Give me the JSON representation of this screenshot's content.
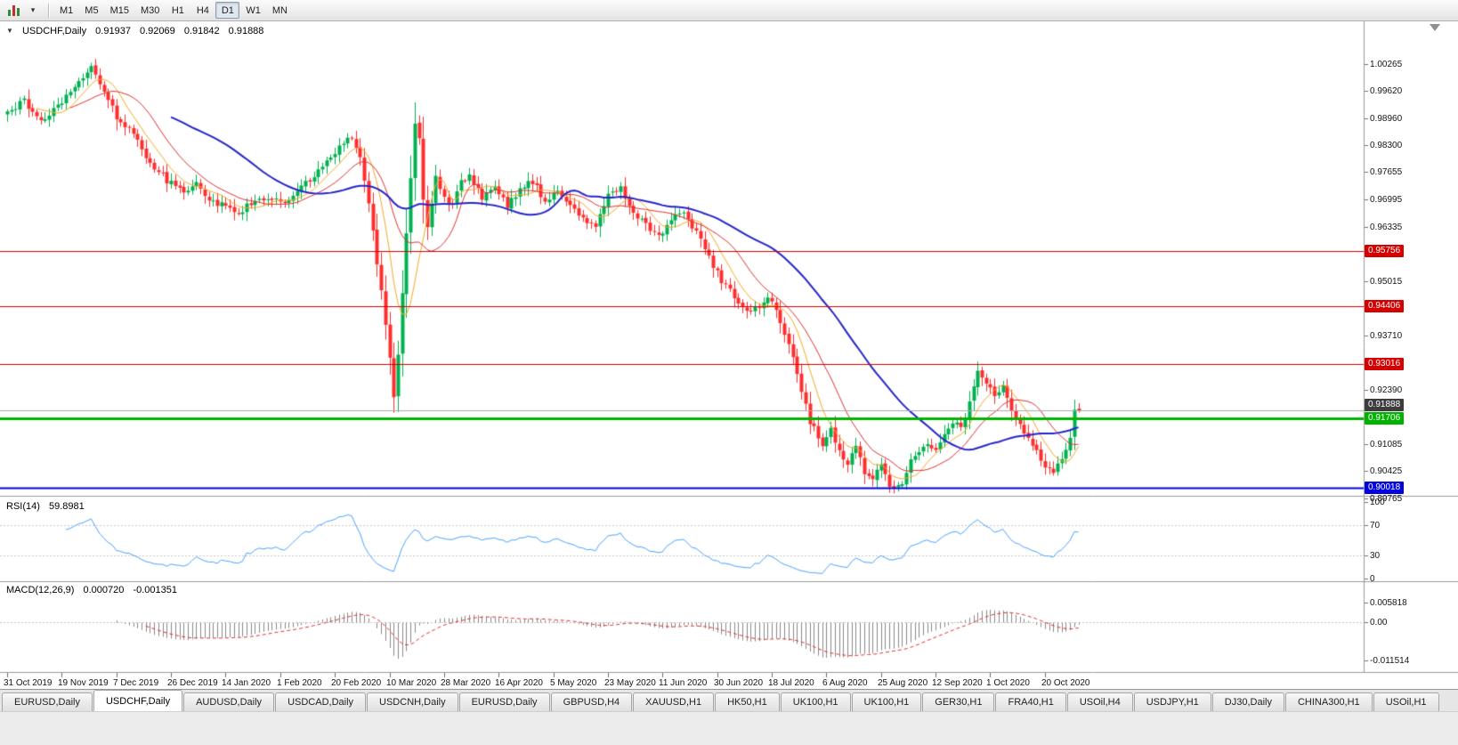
{
  "toolbar": {
    "dropdown_caret": "▾",
    "timeframes": [
      "M1",
      "M5",
      "M15",
      "M30",
      "H1",
      "H4",
      "D1",
      "W1",
      "MN"
    ],
    "active_timeframe": "D1"
  },
  "chart": {
    "menu_arrow": "▼",
    "symbol": "USDCHF,Daily",
    "open": "0.91937",
    "high": "0.92069",
    "low": "0.91842",
    "close": "0.91888"
  },
  "rsi": {
    "name": "RSI(14)",
    "value": "59.8981"
  },
  "macd": {
    "name": "MACD(12,26,9)",
    "value": "0.000720",
    "signal": "-0.001351"
  },
  "tabs": {
    "active_index": 1,
    "items": [
      "EURUSD,Daily",
      "USDCHF,Daily",
      "AUDUSD,Daily",
      "USDCAD,Daily",
      "USDCNH,Daily",
      "EURUSD,Daily",
      "GBPUSD,H4",
      "XAUUSD,H1",
      "HK50,H1",
      "UK100,H1",
      "UK100,H1",
      "GER30,H1",
      "FRA40,H1",
      "USOil,H4",
      "USDJPY,H1",
      "DJ30,Daily",
      "CHINA300,H1",
      "USOil,H1"
    ],
    "active_item": "USDCHF,Daily"
  },
  "chart_data": {
    "type": "candlestick",
    "symbol": "USDCHF",
    "timeframe": "Daily",
    "title": "USDCHF,Daily",
    "grid": false,
    "background": "#ffffff",
    "bars_count": 256,
    "last_bar": {
      "open": 0.91937,
      "high": 0.92069,
      "low": 0.91842,
      "close": 0.91888
    },
    "y_axis_ticks": [
      "1.00265",
      "0.99620",
      "0.98960",
      "0.98300",
      "0.97655",
      "0.96995",
      "0.96335",
      "0.95015",
      "0.93710",
      "0.92390",
      "0.91085",
      "0.90425",
      "0.89765"
    ],
    "x_axis_dates": [
      "31 Oct 2019",
      "19 Nov 2019",
      "7 Dec 2019",
      "26 Dec 2019",
      "14 Jan 2020",
      "1 Feb 2020",
      "20 Feb 2020",
      "10 Mar 2020",
      "28 Mar 2020",
      "16 Apr 2020",
      "5 May 2020",
      "23 May 2020",
      "11 Jun 2020",
      "30 Jun 2020",
      "18 Jul 2020",
      "6 Aug 2020",
      "25 Aug 2020",
      "12 Sep 2020",
      "1 Oct 2020",
      "20 Oct 2020"
    ],
    "horizontal_levels": [
      {
        "price": 0.95756,
        "color": "#d40000",
        "width": 1,
        "role": "resistance"
      },
      {
        "price": 0.94406,
        "color": "#d40000",
        "width": 1,
        "role": "resistance"
      },
      {
        "price": 0.93016,
        "color": "#d40000",
        "width": 1,
        "role": "resistance"
      },
      {
        "price": 0.91706,
        "color": "#00b300",
        "width": 3,
        "role": "support"
      },
      {
        "price": 0.90018,
        "color": "#0000e0",
        "width": 2,
        "role": "support"
      }
    ],
    "current_price": {
      "price": 0.91888,
      "line_color": "#aaaaaa",
      "box_color": "#3c3c3c"
    },
    "candle_colors": {
      "up": "#00b14f",
      "down": "#ff2d2d"
    },
    "moving_averages": [
      {
        "period": 8,
        "color": "#f9a825",
        "width": 1
      },
      {
        "period": 16,
        "color": "#e03131",
        "width": 1
      },
      {
        "period": 40,
        "color": "#2626c9",
        "width": 2
      }
    ],
    "close_path_anchors": [
      [
        0,
        0.9905
      ],
      [
        4,
        0.9938
      ],
      [
        8,
        0.989
      ],
      [
        12,
        0.9925
      ],
      [
        16,
        0.9975
      ],
      [
        20,
        1.0018
      ],
      [
        23,
        0.9962
      ],
      [
        26,
        0.99
      ],
      [
        30,
        0.9858
      ],
      [
        34,
        0.979
      ],
      [
        38,
        0.9745
      ],
      [
        42,
        0.9718
      ],
      [
        45,
        0.9742
      ],
      [
        48,
        0.97
      ],
      [
        52,
        0.9683
      ],
      [
        55,
        0.9665
      ],
      [
        58,
        0.969
      ],
      [
        62,
        0.9706
      ],
      [
        66,
        0.9694
      ],
      [
        70,
        0.973
      ],
      [
        74,
        0.977
      ],
      [
        78,
        0.9816
      ],
      [
        82,
        0.985
      ],
      [
        84,
        0.9795
      ],
      [
        86,
        0.9688
      ],
      [
        88,
        0.9548
      ],
      [
        90,
        0.9398
      ],
      [
        92,
        0.9224
      ],
      [
        93,
        0.933
      ],
      [
        94,
        0.948
      ],
      [
        95,
        0.9622
      ],
      [
        96,
        0.9752
      ],
      [
        97,
        0.9886
      ],
      [
        98,
        0.9852
      ],
      [
        99,
        0.9705
      ],
      [
        100,
        0.9625
      ],
      [
        102,
        0.9755
      ],
      [
        104,
        0.971
      ],
      [
        106,
        0.968
      ],
      [
        108,
        0.9744
      ],
      [
        110,
        0.976
      ],
      [
        113,
        0.9705
      ],
      [
        116,
        0.973
      ],
      [
        119,
        0.9686
      ],
      [
        122,
        0.9725
      ],
      [
        125,
        0.9744
      ],
      [
        128,
        0.9695
      ],
      [
        131,
        0.972
      ],
      [
        134,
        0.969
      ],
      [
        137,
        0.9652
      ],
      [
        140,
        0.9636
      ],
      [
        143,
        0.9708
      ],
      [
        146,
        0.9724
      ],
      [
        149,
        0.967
      ],
      [
        152,
        0.964
      ],
      [
        155,
        0.9606
      ],
      [
        158,
        0.9654
      ],
      [
        161,
        0.966
      ],
      [
        164,
        0.962
      ],
      [
        167,
        0.956
      ],
      [
        170,
        0.9502
      ],
      [
        173,
        0.9465
      ],
      [
        176,
        0.9426
      ],
      [
        179,
        0.9444
      ],
      [
        182,
        0.946
      ],
      [
        185,
        0.938
      ],
      [
        188,
        0.928
      ],
      [
        191,
        0.9162
      ],
      [
        194,
        0.9106
      ],
      [
        196,
        0.9145
      ],
      [
        198,
        0.9086
      ],
      [
        200,
        0.906
      ],
      [
        202,
        0.9105
      ],
      [
        204,
        0.904
      ],
      [
        206,
        0.9022
      ],
      [
        208,
        0.9066
      ],
      [
        210,
        0.9012
      ],
      [
        213,
        0.9004
      ],
      [
        215,
        0.9064
      ],
      [
        217,
        0.9094
      ],
      [
        219,
        0.9114
      ],
      [
        221,
        0.909
      ],
      [
        223,
        0.9134
      ],
      [
        225,
        0.9164
      ],
      [
        227,
        0.9146
      ],
      [
        229,
        0.9205
      ],
      [
        231,
        0.9293
      ],
      [
        233,
        0.9252
      ],
      [
        235,
        0.9226
      ],
      [
        237,
        0.9244
      ],
      [
        239,
        0.9186
      ],
      [
        241,
        0.915
      ],
      [
        243,
        0.912
      ],
      [
        245,
        0.9092
      ],
      [
        247,
        0.9058
      ],
      [
        249,
        0.9046
      ],
      [
        251,
        0.9064
      ],
      [
        253,
        0.9124
      ],
      [
        254,
        0.9184
      ],
      [
        255,
        0.91888
      ]
    ],
    "indicators": {
      "rsi": {
        "period": 14,
        "value": 59.8981,
        "line_color": "#4aa3ff",
        "axis_ticks": [
          {
            "label": "100",
            "value": 100
          },
          {
            "label": "70",
            "value": 70
          },
          {
            "label": "30",
            "value": 30
          },
          {
            "label": "0",
            "value": 0
          }
        ],
        "guide_levels": [
          70,
          30
        ]
      },
      "macd": {
        "fast": 12,
        "slow": 26,
        "signal_period": 9,
        "value": 0.00072,
        "signal": -0.001351,
        "histogram_color": "#8a8a8a",
        "signal_color": "#e03131",
        "axis_ticks": [
          {
            "label": "0.005818",
            "value": 0.005818
          },
          {
            "label": "0.00",
            "value": 0
          },
          {
            "label": "-0.011514",
            "value": -0.011514
          }
        ]
      }
    }
  }
}
